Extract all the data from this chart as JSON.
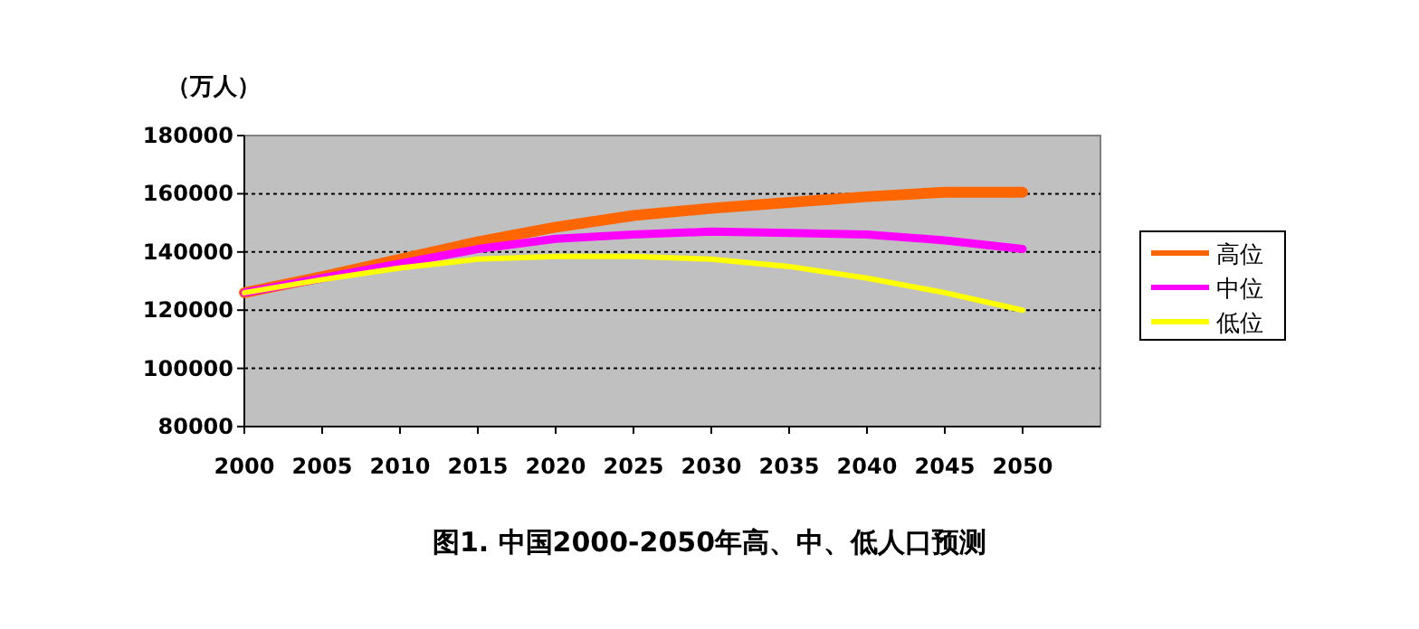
{
  "chart_data": {
    "type": "line",
    "title": "图1.  中国2000-2050年高、中、低人口预测",
    "ylabel": "（万人）",
    "x": [
      2000,
      2005,
      2010,
      2015,
      2020,
      2025,
      2030,
      2035,
      2040,
      2045,
      2050
    ],
    "series": [
      {
        "name": "高位",
        "color": "#ff6600",
        "values": [
          126000,
          131500,
          137500,
          143500,
          148500,
          152500,
          155000,
          157000,
          159000,
          160500,
          160500
        ]
      },
      {
        "name": "中位",
        "color": "#ff00ff",
        "values": [
          126000,
          131000,
          136000,
          141000,
          144500,
          146000,
          147000,
          146500,
          146000,
          144000,
          141000
        ]
      },
      {
        "name": "低位",
        "color": "#ffff00",
        "values": [
          126000,
          130500,
          134500,
          137500,
          138500,
          138500,
          137500,
          135000,
          131000,
          126000,
          120000
        ]
      }
    ],
    "xlim": [
      2000,
      2055
    ],
    "xticks": [
      2000,
      2005,
      2010,
      2015,
      2020,
      2025,
      2030,
      2035,
      2040,
      2045,
      2050
    ],
    "ylim": [
      80000,
      180000
    ],
    "yticks": [
      80000,
      100000,
      120000,
      140000,
      160000,
      180000
    ],
    "grid": "y",
    "legend": "right",
    "line_style": "solid"
  }
}
